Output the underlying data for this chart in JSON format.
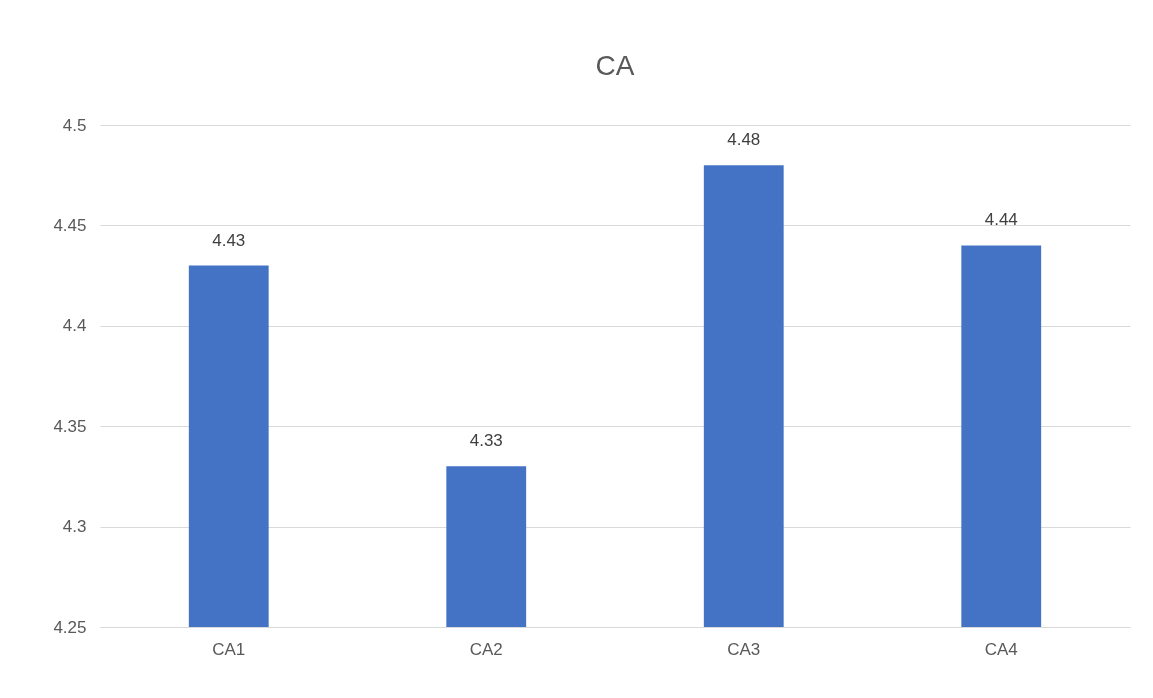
{
  "chart_data": {
    "type": "bar",
    "title": "CA",
    "categories": [
      "CA1",
      "CA2",
      "CA3",
      "CA4"
    ],
    "values": [
      4.43,
      4.33,
      4.48,
      4.44
    ],
    "color": "#4472c4",
    "ylim": [
      4.25,
      4.5
    ],
    "yticks": [
      4.25,
      4.3,
      4.35,
      4.4,
      4.45,
      4.5
    ],
    "grid": "y",
    "data_labels": true
  }
}
